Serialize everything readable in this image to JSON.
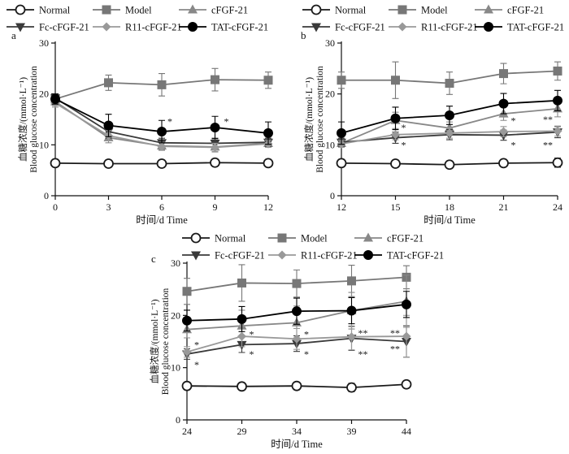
{
  "legend_top": [
    {
      "key": "normal",
      "label": "Normal"
    },
    {
      "key": "model",
      "label": "Model"
    },
    {
      "key": "cfgf",
      "label": "cFGF-21"
    },
    {
      "key": "fc",
      "label": "Fc-cFGF-21"
    },
    {
      "key": "r11",
      "label": "R11-cFGF-21"
    },
    {
      "key": "tat",
      "label": "TAT-cFGF-21"
    }
  ],
  "series_styles": {
    "normal": {
      "marker": "circle-open",
      "color": "#1a1a1a"
    },
    "model": {
      "marker": "square",
      "color": "#777777"
    },
    "cfgf": {
      "marker": "triangle-up",
      "color": "#888888"
    },
    "fc": {
      "marker": "triangle-down",
      "color": "#3a3a3a"
    },
    "r11": {
      "marker": "diamond",
      "color": "#999999"
    },
    "tat": {
      "marker": "circle",
      "color": "#000000"
    }
  },
  "chart_data": [
    {
      "type": "line",
      "panel": "a",
      "title": "",
      "ylabel_cn": "血糖浓度/(mmol·L⁻¹)",
      "ylabel_en": "Blood glucose concentration",
      "xlabel": "时间/d Time",
      "xlim": [
        0,
        12
      ],
      "ylim": [
        0,
        30
      ],
      "xticks": [
        0,
        3,
        6,
        9,
        12
      ],
      "yticks": [
        0,
        10,
        20,
        30
      ],
      "x": [
        0,
        3,
        6,
        9,
        12
      ],
      "series": [
        {
          "key": "normal",
          "name": "Normal",
          "values": [
            6.4,
            6.3,
            6.3,
            6.5,
            6.4
          ],
          "err": [
            0.3,
            0.3,
            0.3,
            0.3,
            0.5
          ]
        },
        {
          "key": "model",
          "name": "Model",
          "values": [
            19.0,
            22.2,
            21.8,
            22.8,
            22.7
          ],
          "err": [
            1.0,
            1.5,
            2.2,
            2.2,
            1.6
          ]
        },
        {
          "key": "cfgf",
          "name": "cFGF-21",
          "values": [
            18.5,
            11.4,
            9.8,
            9.6,
            10.3
          ],
          "err": [
            0.8,
            1.0,
            0.8,
            1.0,
            0.8
          ]
        },
        {
          "key": "fc",
          "name": "Fc-cFGF-21",
          "values": [
            19.2,
            12.6,
            10.4,
            10.3,
            10.5
          ],
          "err": [
            0.8,
            1.3,
            0.9,
            1.0,
            0.8
          ]
        },
        {
          "key": "r11",
          "name": "R11-cFGF-21",
          "values": [
            18.2,
            11.8,
            9.7,
            9.5,
            10.2
          ],
          "err": [
            0.8,
            1.0,
            0.8,
            0.8,
            0.7
          ]
        },
        {
          "key": "tat",
          "name": "TAT-cFGF-21",
          "values": [
            19.0,
            13.8,
            12.6,
            13.4,
            12.3
          ],
          "err": [
            1.0,
            2.2,
            2.2,
            2.2,
            2.2
          ]
        }
      ],
      "annotations": [
        {
          "x": 6,
          "y": 14.6,
          "dx": 10,
          "text": "*"
        },
        {
          "x": 9,
          "y": 14.6,
          "dx": 14,
          "text": "*"
        }
      ]
    },
    {
      "type": "line",
      "panel": "b",
      "title": "",
      "ylabel_cn": "血糖浓度/(mmol·L⁻¹)",
      "ylabel_en": "Blood glucose concentration",
      "xlabel": "时间/d Time",
      "xlim": [
        12,
        24
      ],
      "ylim": [
        0,
        30
      ],
      "xticks": [
        12,
        15,
        18,
        21,
        24
      ],
      "yticks": [
        0,
        10,
        20,
        30
      ],
      "x": [
        12,
        15,
        18,
        21,
        24
      ],
      "series": [
        {
          "key": "normal",
          "name": "Normal",
          "values": [
            6.4,
            6.3,
            6.1,
            6.4,
            6.5
          ],
          "err": [
            0.3,
            0.3,
            0.3,
            0.3,
            0.9
          ]
        },
        {
          "key": "model",
          "name": "Model",
          "values": [
            22.7,
            22.7,
            22.1,
            24.0,
            24.5
          ],
          "err": [
            1.6,
            3.6,
            2.2,
            2.0,
            1.8
          ]
        },
        {
          "key": "cfgf",
          "name": "cFGF-21",
          "values": [
            10.3,
            14.8,
            13.3,
            16.1,
            17.1
          ],
          "err": [
            0.8,
            1.6,
            1.2,
            1.3,
            1.6
          ]
        },
        {
          "key": "fc",
          "name": "Fc-cFGF-21",
          "values": [
            10.5,
            11.4,
            12.0,
            11.9,
            12.5
          ],
          "err": [
            0.8,
            1.1,
            1.0,
            1.0,
            1.1
          ]
        },
        {
          "key": "r11",
          "name": "R11-cFGF-21",
          "values": [
            10.2,
            12.0,
            12.3,
            12.6,
            12.7
          ],
          "err": [
            0.7,
            1.0,
            1.0,
            1.0,
            1.0
          ]
        },
        {
          "key": "tat",
          "name": "TAT-cFGF-21",
          "values": [
            12.3,
            15.2,
            15.8,
            18.1,
            18.7
          ],
          "err": [
            2.2,
            2.2,
            1.8,
            2.0,
            2.0
          ]
        }
      ],
      "annotations": [
        {
          "x": 15,
          "y": 13.4,
          "dx": 10,
          "text": "*"
        },
        {
          "x": 15,
          "y": 10.0,
          "dx": 10,
          "text": "*"
        },
        {
          "x": 21,
          "y": 14.8,
          "dx": 12,
          "text": "*"
        },
        {
          "x": 21,
          "y": 10.0,
          "dx": 12,
          "text": "*"
        },
        {
          "x": 24,
          "y": 15.0,
          "dx": -12,
          "text": "**"
        },
        {
          "x": 24,
          "y": 10.0,
          "dx": -12,
          "text": "**"
        }
      ]
    },
    {
      "type": "line",
      "panel": "c",
      "title": "",
      "ylabel_cn": "血糖浓度/(mmol·L⁻¹)",
      "ylabel_en": "Blood glucose concentration",
      "xlabel": "时间/d Time",
      "xlim": [
        24,
        44
      ],
      "ylim": [
        0,
        30
      ],
      "xticks": [
        24,
        29,
        34,
        39,
        44
      ],
      "yticks": [
        0,
        10,
        20,
        30
      ],
      "x": [
        24,
        29,
        34,
        39,
        44
      ],
      "series": [
        {
          "key": "normal",
          "name": "Normal",
          "values": [
            6.5,
            6.4,
            6.5,
            6.2,
            6.8
          ],
          "err": [
            0.5,
            0.3,
            0.3,
            0.8,
            0.4
          ]
        },
        {
          "key": "model",
          "name": "Model",
          "values": [
            24.6,
            26.2,
            26.1,
            26.6,
            27.3
          ],
          "err": [
            2.5,
            3.5,
            2.6,
            3.0,
            2.2
          ]
        },
        {
          "key": "cfgf",
          "name": "cFGF-21",
          "values": [
            17.3,
            18.0,
            18.6,
            20.9,
            22.7
          ],
          "err": [
            1.6,
            3.0,
            3.2,
            3.5,
            5.0
          ]
        },
        {
          "key": "fc",
          "name": "Fc-cFGF-21",
          "values": [
            12.6,
            14.4,
            14.6,
            15.6,
            15.0
          ],
          "err": [
            1.0,
            1.5,
            1.5,
            2.3,
            3.0
          ]
        },
        {
          "key": "r11",
          "name": "R11-cFGF-21",
          "values": [
            13.0,
            16.0,
            15.5,
            15.9,
            16.0
          ],
          "err": [
            1.0,
            2.0,
            2.0,
            2.5,
            4.0
          ]
        },
        {
          "key": "tat",
          "name": "TAT-cFGF-21",
          "values": [
            19.0,
            19.3,
            20.8,
            20.9,
            22.1
          ],
          "err": [
            2.0,
            2.4,
            2.5,
            2.5,
            2.5
          ]
        }
      ],
      "annotations": [
        {
          "x": 24,
          "y": 14.4,
          "dx": 12,
          "text": "*"
        },
        {
          "x": 24,
          "y": 10.6,
          "dx": 12,
          "text": "*"
        },
        {
          "x": 29,
          "y": 16.4,
          "dx": 12,
          "text": "*"
        },
        {
          "x": 29,
          "y": 12.6,
          "dx": 12,
          "text": "*"
        },
        {
          "x": 34,
          "y": 16.4,
          "dx": 12,
          "text": "*"
        },
        {
          "x": 34,
          "y": 12.6,
          "dx": 12,
          "text": "*"
        },
        {
          "x": 39,
          "y": 16.6,
          "dx": 14,
          "text": "**"
        },
        {
          "x": 39,
          "y": 12.6,
          "dx": 14,
          "text": "**"
        },
        {
          "x": 44,
          "y": 16.6,
          "dx": -14,
          "text": "**"
        },
        {
          "x": 44,
          "y": 13.6,
          "dx": -14,
          "text": "**"
        }
      ]
    }
  ]
}
